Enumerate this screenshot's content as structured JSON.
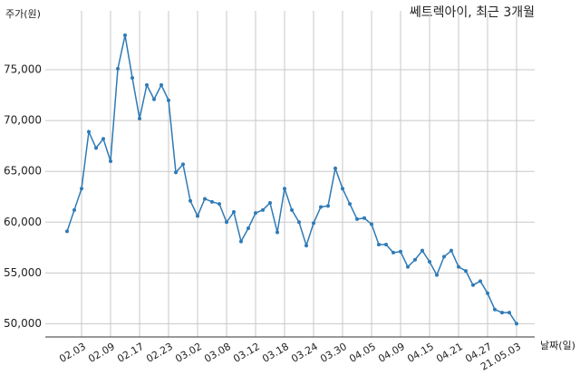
{
  "chart_data": {
    "type": "line",
    "title": "쎄트렉아이, 최근 3개월",
    "y_label": "주가(원)",
    "x_label": "날짜(일)",
    "categories": [
      null,
      null,
      "02.03",
      null,
      null,
      null,
      "02.09",
      null,
      null,
      null,
      "02.17",
      null,
      null,
      null,
      "02.23",
      null,
      null,
      null,
      "03.02",
      null,
      null,
      null,
      "03.08",
      null,
      null,
      null,
      "03.12",
      null,
      null,
      null,
      "03.18",
      null,
      null,
      null,
      "03.24",
      null,
      null,
      null,
      "03.30",
      null,
      null,
      null,
      "04.05",
      null,
      null,
      null,
      "04.09",
      null,
      null,
      null,
      "04.15",
      null,
      null,
      null,
      "04.21",
      null,
      null,
      null,
      "04.27",
      null,
      null,
      null,
      "21.05.03"
    ],
    "series": [
      {
        "name": "주가",
        "color": "#2e7ab6",
        "values": [
          59100,
          61200,
          63300,
          68900,
          67300,
          68200,
          66000,
          75100,
          78400,
          74200,
          70200,
          73500,
          72100,
          73500,
          72000,
          64900,
          65700,
          62100,
          60600,
          62300,
          62000,
          61800,
          60000,
          61000,
          58100,
          59400,
          60900,
          61200,
          61900,
          59000,
          63300,
          61200,
          60000,
          57700,
          59900,
          61500,
          61600,
          65300,
          63300,
          61800,
          60300,
          60400,
          59800,
          57800,
          57800,
          57000,
          57100,
          55600,
          56300,
          57200,
          56100,
          54800,
          56600,
          57200,
          55600,
          55200,
          53800,
          54200,
          53000,
          51400,
          51100,
          51100,
          50000
        ]
      }
    ],
    "ylim": [
      48700,
      80800
    ],
    "yticks": [
      {
        "value": 50000,
        "label": "50,000"
      },
      {
        "value": 55000,
        "label": "55,000"
      },
      {
        "value": 60000,
        "label": "60,000"
      },
      {
        "value": 65000,
        "label": "65,000"
      },
      {
        "value": 70000,
        "label": "70,000"
      },
      {
        "value": 75000,
        "label": "75,000"
      }
    ],
    "grid": true
  }
}
